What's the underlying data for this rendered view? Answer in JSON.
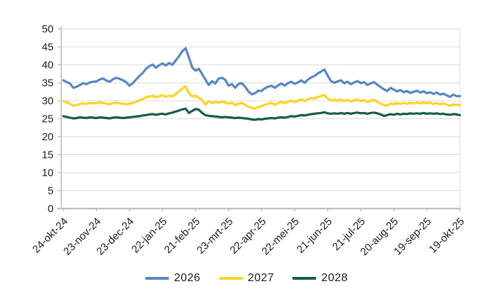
{
  "chart_data": {
    "type": "line",
    "title": "",
    "xlabel": "",
    "ylabel": "",
    "ylim": [
      0,
      50
    ],
    "y_tick_step": 5,
    "y_ticks": [
      0,
      5,
      10,
      15,
      20,
      25,
      30,
      35,
      40,
      45,
      50
    ],
    "grid": true,
    "legend_position": "bottom",
    "x_tick_labels": [
      "24-okt-24",
      "23-nov-24",
      "23-dec-24",
      "22-jan-25",
      "21-feb-25",
      "23-mrt-25",
      "22-apr-25",
      "22-mei-25",
      "21-jun-25",
      "21-jul-25",
      "20-aug-25",
      "19-sep-25",
      "19-okt-25"
    ],
    "sample_interval_days": 3,
    "style": {
      "axis_color": "#BFBFBF",
      "grid_color": "#D9D9D9",
      "label_color": "#1B1B1B",
      "background": "#FFFFFF"
    },
    "series": [
      {
        "name": "2026",
        "color": "#5586C4",
        "values": [
          35.7,
          35.2,
          34.8,
          33.6,
          33.9,
          34.4,
          34.9,
          34.6,
          35.1,
          35.3,
          35.4,
          35.9,
          36.2,
          35.6,
          35.3,
          36.0,
          36.4,
          36.1,
          35.7,
          35.2,
          34.2,
          34.9,
          35.9,
          36.9,
          37.7,
          38.9,
          39.6,
          40.1,
          39.2,
          39.9,
          40.4,
          39.8,
          40.5,
          40.0,
          41.2,
          42.4,
          43.8,
          44.6,
          42.0,
          39.3,
          38.4,
          38.9,
          37.4,
          35.9,
          34.4,
          35.5,
          34.8,
          36.2,
          36.4,
          35.8,
          34.2,
          34.6,
          33.6,
          34.7,
          34.9,
          33.9,
          32.6,
          31.8,
          32.1,
          32.8,
          32.7,
          33.5,
          33.9,
          34.2,
          33.6,
          34.3,
          34.8,
          34.2,
          34.9,
          35.3,
          34.7,
          35.1,
          35.7,
          35.0,
          35.9,
          36.5,
          36.9,
          37.6,
          38.1,
          38.7,
          37.0,
          35.5,
          35.0,
          35.4,
          35.7,
          34.9,
          35.3,
          34.6,
          35.1,
          35.5,
          34.9,
          35.2,
          34.4,
          34.8,
          35.2,
          34.5,
          33.8,
          33.2,
          32.7,
          33.6,
          33.1,
          32.6,
          33.0,
          32.4,
          32.7,
          32.2,
          32.5,
          32.8,
          32.3,
          32.6,
          32.1,
          32.4,
          31.9,
          32.3,
          31.7,
          32.0,
          31.5,
          31.1,
          31.7,
          31.3,
          31.3
        ]
      },
      {
        "name": "2027",
        "color": "#FFD320",
        "values": [
          29.9,
          29.6,
          29.2,
          28.6,
          28.8,
          29.1,
          29.3,
          29.1,
          29.4,
          29.3,
          29.4,
          29.6,
          29.4,
          29.2,
          29.0,
          29.3,
          29.5,
          29.3,
          29.2,
          29.0,
          29.2,
          29.4,
          29.7,
          30.1,
          30.5,
          30.9,
          31.2,
          31.4,
          31.0,
          31.3,
          31.5,
          31.1,
          31.4,
          31.2,
          31.9,
          32.6,
          33.4,
          34.0,
          32.1,
          31.2,
          31.4,
          30.9,
          30.2,
          28.9,
          29.9,
          29.3,
          29.7,
          29.4,
          29.8,
          29.5,
          29.2,
          29.5,
          28.8,
          29.2,
          29.4,
          28.9,
          28.4,
          28.0,
          27.8,
          28.3,
          28.5,
          28.9,
          29.2,
          29.4,
          28.9,
          29.3,
          29.8,
          29.3,
          29.7,
          30.1,
          29.6,
          30.0,
          30.4,
          29.9,
          30.4,
          30.8,
          30.6,
          31.0,
          31.3,
          31.6,
          30.6,
          30.1,
          30.3,
          30.0,
          30.4,
          29.9,
          30.2,
          29.8,
          30.1,
          30.4,
          29.9,
          30.2,
          29.6,
          30.0,
          30.3,
          29.7,
          29.2,
          28.8,
          28.6,
          29.3,
          29.0,
          29.4,
          29.1,
          29.4,
          29.2,
          29.5,
          29.2,
          29.5,
          29.3,
          29.6,
          29.3,
          29.5,
          29.1,
          29.4,
          29.0,
          29.3,
          28.9,
          28.6,
          29.0,
          28.8,
          28.9
        ]
      },
      {
        "name": "2028",
        "color": "#175A50",
        "values": [
          25.7,
          25.5,
          25.3,
          25.1,
          25.2,
          25.4,
          25.3,
          25.2,
          25.4,
          25.3,
          25.2,
          25.4,
          25.3,
          25.2,
          25.1,
          25.3,
          25.4,
          25.3,
          25.2,
          25.3,
          25.4,
          25.5,
          25.6,
          25.7,
          25.9,
          26.0,
          26.2,
          26.3,
          26.1,
          26.3,
          26.4,
          26.2,
          26.5,
          26.7,
          27.0,
          27.3,
          27.6,
          27.8,
          26.6,
          27.2,
          27.7,
          27.5,
          26.6,
          26.0,
          25.8,
          25.7,
          25.6,
          25.5,
          25.4,
          25.5,
          25.4,
          25.3,
          25.2,
          25.3,
          25.2,
          25.1,
          25.0,
          24.8,
          24.7,
          24.9,
          24.8,
          25.0,
          25.1,
          25.2,
          25.1,
          25.3,
          25.4,
          25.3,
          25.5,
          25.7,
          25.6,
          25.8,
          26.0,
          25.9,
          26.1,
          26.3,
          26.4,
          26.5,
          26.6,
          26.8,
          26.5,
          26.4,
          26.5,
          26.4,
          26.6,
          26.4,
          26.6,
          26.4,
          26.6,
          26.7,
          26.5,
          26.6,
          26.4,
          26.6,
          26.7,
          26.5,
          26.2,
          25.8,
          26.0,
          26.3,
          26.1,
          26.4,
          26.2,
          26.4,
          26.3,
          26.5,
          26.4,
          26.5,
          26.4,
          26.6,
          26.4,
          26.5,
          26.4,
          26.5,
          26.3,
          26.4,
          26.2,
          26.1,
          26.3,
          26.2,
          26.0
        ]
      }
    ]
  }
}
